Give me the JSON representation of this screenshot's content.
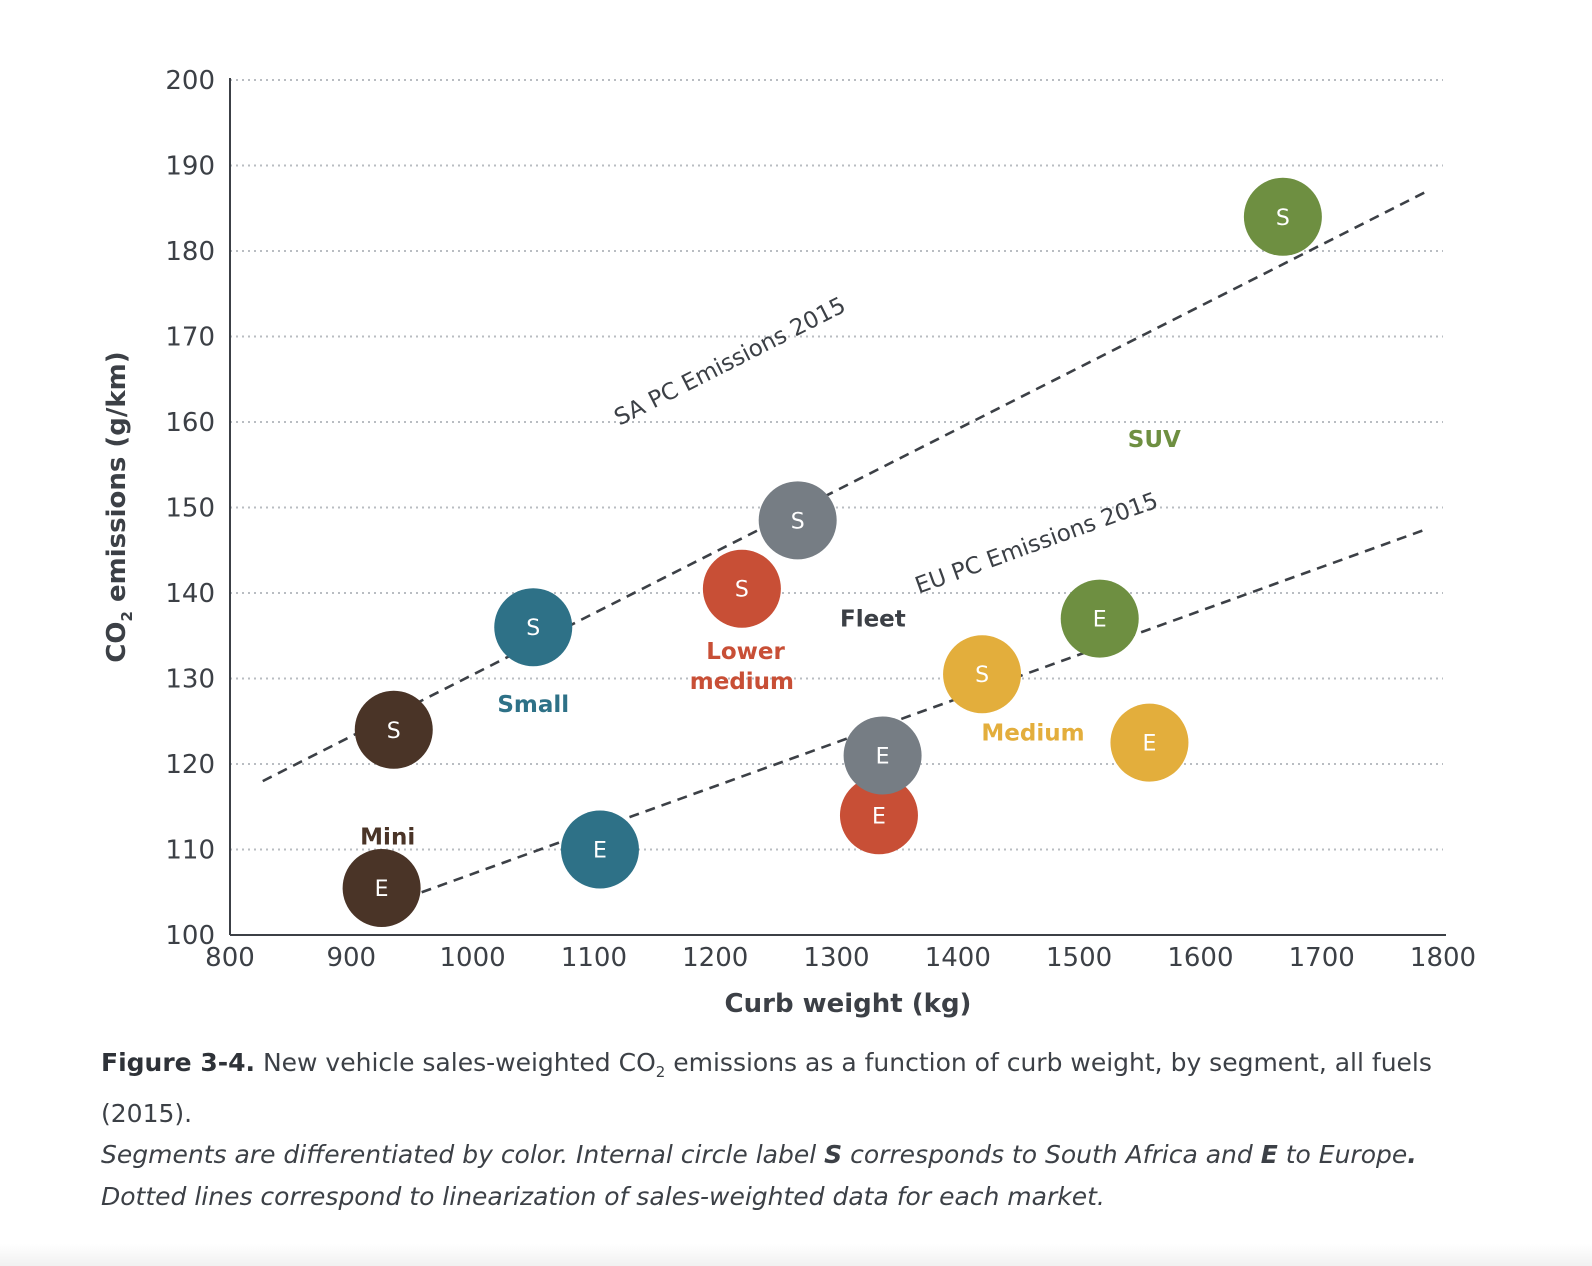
{
  "chart_data": {
    "type": "scatter",
    "xlabel": "Curb weight (kg)",
    "ylabel_prefix": "CO",
    "ylabel_sub": "2",
    "ylabel_suffix": " emissions (g/km)",
    "xlim": [
      800,
      1800
    ],
    "ylim": [
      100,
      200
    ],
    "xticks": [
      "800",
      "900",
      "1000",
      "1100",
      "1200",
      "1300",
      "1400",
      "1500",
      "1600",
      "1700",
      "1800"
    ],
    "yticks": [
      "100",
      "110",
      "120",
      "130",
      "140",
      "150",
      "160",
      "170",
      "180",
      "190",
      "200"
    ],
    "grid": "horizontal-dotted",
    "series": [
      {
        "name": "Mini",
        "color": "#4a3427",
        "points": [
          {
            "x": 935,
            "y": 124,
            "label": "S"
          },
          {
            "x": 925,
            "y": 105.5,
            "label": "E"
          }
        ]
      },
      {
        "name": "Small",
        "color": "#2e7187",
        "points": [
          {
            "x": 1050,
            "y": 136,
            "label": "S"
          },
          {
            "x": 1105,
            "y": 110,
            "label": "E"
          }
        ]
      },
      {
        "name": "Lower medium",
        "color": "#c84f36",
        "points": [
          {
            "x": 1222,
            "y": 140.5,
            "label": "S"
          },
          {
            "x": 1335,
            "y": 114,
            "label": "E"
          }
        ]
      },
      {
        "name": "Fleet",
        "color": "#767d84",
        "points": [
          {
            "x": 1268,
            "y": 148.5,
            "label": "S"
          },
          {
            "x": 1338,
            "y": 121,
            "label": "E"
          }
        ]
      },
      {
        "name": "Medium",
        "color": "#e3ae3c",
        "points": [
          {
            "x": 1420,
            "y": 130.5,
            "label": "S"
          },
          {
            "x": 1558,
            "y": 122.5,
            "label": "E"
          }
        ]
      },
      {
        "name": "SUV",
        "color": "#6e8f41",
        "points": [
          {
            "x": 1668,
            "y": 184,
            "label": "S"
          },
          {
            "x": 1517,
            "y": 137,
            "label": "E"
          }
        ]
      }
    ],
    "segment_labels": [
      {
        "text": "Mini",
        "x": 930,
        "y": 111.5,
        "color": "#4a3427"
      },
      {
        "text": "Small",
        "x": 1050,
        "y": 127,
        "color": "#2e7187"
      },
      {
        "text": "Lower",
        "x": 1225,
        "y": 133.2,
        "color": "#c84f36"
      },
      {
        "text": "medium",
        "x": 1222,
        "y": 129.7,
        "color": "#c84f36"
      },
      {
        "text": "Fleet",
        "x": 1330,
        "y": 137,
        "color": "#3c4046"
      },
      {
        "text": "Medium",
        "x": 1462,
        "y": 123.7,
        "color": "#e3ae3c"
      },
      {
        "text": "SUV",
        "x": 1562,
        "y": 158,
        "color": "#6e8f41"
      }
    ],
    "trendlines": [
      {
        "name": "SA PC Emissions 2015",
        "x1": 827,
        "y1": 118,
        "x2": 1787,
        "y2": 187,
        "label_x": 1215,
        "label_y": 166.3
      },
      {
        "name": "EU PC Emissions 2015",
        "x1": 958,
        "y1": 105,
        "x2": 1787,
        "y2": 147.5,
        "label_x": 1467,
        "label_y": 145
      }
    ]
  },
  "caption": {
    "figure_label": "Figure 3-4.",
    "text_before": " New vehicle sales-weighted CO",
    "text_sub": "2",
    "text_after": " emissions as a function of curb weight, by segment, all fuels (2015)."
  },
  "note": {
    "part1": "Segments are differentiated by color. Internal circle label ",
    "bold1": "S",
    "part2": " corresponds to South Africa and ",
    "bold2": "E",
    "part3": " to Europe",
    "bold3": ".",
    "part4": " Dotted lines correspond to linearization of sales-weighted data for each market."
  }
}
